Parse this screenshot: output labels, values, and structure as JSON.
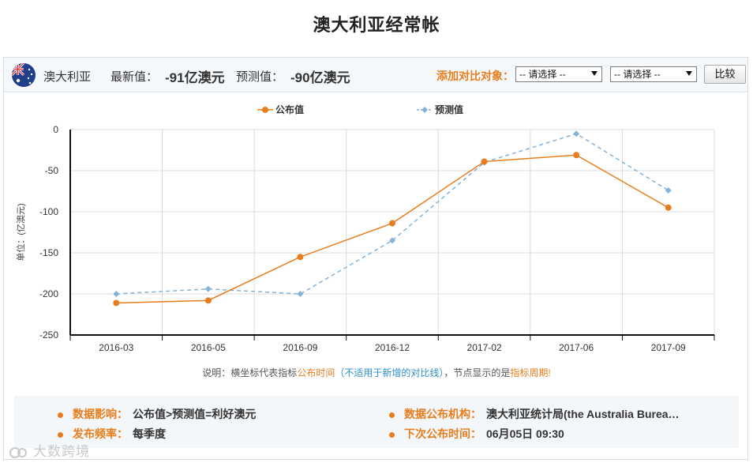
{
  "page": {
    "title": "澳大利亚经常帐"
  },
  "header": {
    "country": "澳大利亚",
    "latest_label": "最新值：",
    "latest_value": "-91亿澳元",
    "forecast_label": "预测值：",
    "forecast_value": "-90亿澳元",
    "compare_label": "添加对比对象：",
    "select1": "-- 请选择 --",
    "select2": "-- 请选择 --",
    "compare_button": "比较"
  },
  "chart_data": {
    "type": "line",
    "categories": [
      "2016-03",
      "2016-05",
      "2016-09",
      "2016-12",
      "2017-02",
      "2017-06",
      "2017-09"
    ],
    "series": [
      {
        "name": "公布值",
        "values": [
          -211,
          -208,
          -155,
          -114,
          -39,
          -31,
          -95
        ],
        "color": "#e87d1e",
        "dash": false
      },
      {
        "name": "预测值",
        "values": [
          -200,
          -194,
          -200,
          -135,
          -40,
          -5,
          -74
        ],
        "color": "#85b2d8",
        "dash": true
      }
    ],
    "ylabel": "单位：(亿澳元)",
    "ylim": [
      -250,
      0
    ],
    "yticks": [
      0,
      -50,
      -100,
      -150,
      -200,
      -250
    ],
    "legend_position": "top-center",
    "grid": true
  },
  "note": {
    "prefix": "说明：横坐标代表指标",
    "publish_time": "公布时间",
    "paren": "（不适用于新增的对比线）",
    "middle": "，节点显示的是",
    "period": "指标周期!"
  },
  "info": {
    "impact_label": "数据影响：",
    "impact_value": "公布值>预测值=利好澳元",
    "agency_label": "数据公布机构：",
    "agency_value": "澳大利亚统计局(the Australia Burea…",
    "freq_label": "发布频率：",
    "freq_value": "每季度",
    "next_label": "下次公布时间：",
    "next_value": "06月05日 09:30"
  },
  "watermark": {
    "text": "大数跨境"
  }
}
